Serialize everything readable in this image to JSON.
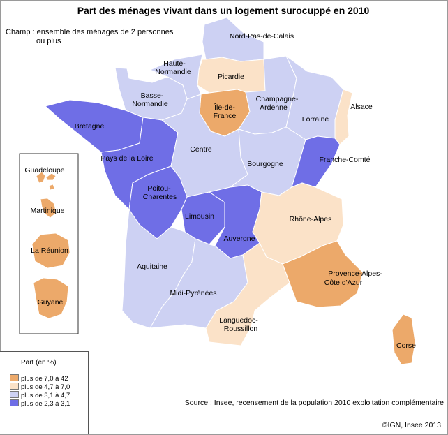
{
  "title": "Part des ménages vivant dans un logement surocuppé en 2010",
  "scope": {
    "line1": "Champ : ensemble des ménages de 2 personnes",
    "line2": "ou plus"
  },
  "colors": {
    "class1": "#eca96a",
    "class2": "#fbe2c8",
    "class3": "#cdd1f3",
    "class4": "#6f6ee6",
    "border": "#ffffff",
    "frame": "#9a9a9a"
  },
  "regions": [
    {
      "name": "Nord-Pas-de-Calais",
      "class": "class3"
    },
    {
      "name": "Picardie",
      "class": "class2"
    },
    {
      "name": "Haute-Normandie",
      "class": "class3"
    },
    {
      "name": "Basse-Normandie",
      "class": "class3"
    },
    {
      "name": "Île-de-France",
      "class": "class1"
    },
    {
      "name": "Champagne-Ardenne",
      "class": "class3"
    },
    {
      "name": "Lorraine",
      "class": "class3"
    },
    {
      "name": "Alsace",
      "class": "class2"
    },
    {
      "name": "Bretagne",
      "class": "class4"
    },
    {
      "name": "Pays de la Loire",
      "class": "class4"
    },
    {
      "name": "Centre",
      "class": "class3"
    },
    {
      "name": "Bourgogne",
      "class": "class3"
    },
    {
      "name": "Franche-Comté",
      "class": "class4"
    },
    {
      "name": "Poitou-Charentes",
      "class": "class4"
    },
    {
      "name": "Limousin",
      "class": "class4"
    },
    {
      "name": "Auvergne",
      "class": "class4"
    },
    {
      "name": "Rhône-Alpes",
      "class": "class2"
    },
    {
      "name": "Aquitaine",
      "class": "class3"
    },
    {
      "name": "Midi-Pyrénées",
      "class": "class3"
    },
    {
      "name": "Languedoc-Roussillon",
      "class": "class2"
    },
    {
      "name": "Provence-Alpes-Côte d'Azur",
      "class": "class1"
    },
    {
      "name": "Corse",
      "class": "class1"
    },
    {
      "name": "Guadeloupe",
      "class": "class1"
    },
    {
      "name": "Martinique",
      "class": "class1"
    },
    {
      "name": "La Réunion",
      "class": "class1"
    },
    {
      "name": "Guyane",
      "class": "class1"
    }
  ],
  "legend": {
    "title": "Part (en %)",
    "items": [
      {
        "label": "plus de 7,0 à 42",
        "class": "class1"
      },
      {
        "label": "plus de 4,7 à 7,0",
        "class": "class2"
      },
      {
        "label": "plus de 3,1 à 4,7",
        "class": "class3"
      },
      {
        "label": "plus de 2,3 à 3,1",
        "class": "class4"
      }
    ]
  },
  "source": "Source : Insee, recensement de la population 2010 exploitation complémentaire",
  "copyright": "©IGN, Insee 2013"
}
